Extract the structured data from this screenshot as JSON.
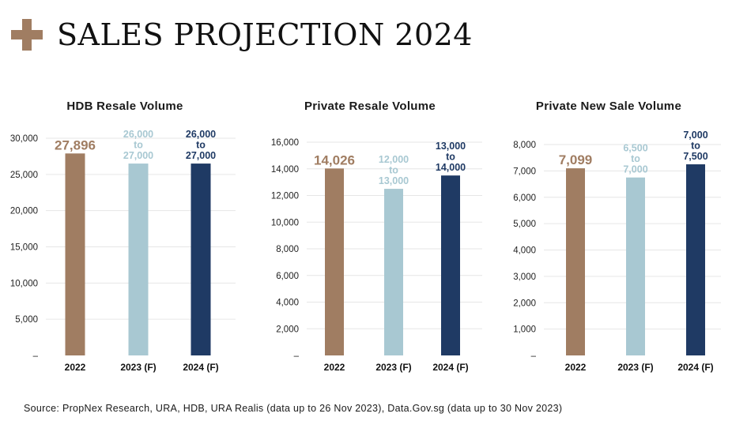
{
  "header": {
    "title": "SALES PROJECTION 2024",
    "icon": "plus-icon"
  },
  "colors": {
    "2022": "#a07d62",
    "2023 (F)": "#a8c8d2",
    "2024 (F)": "#1f3a64",
    "grid": "#e6e6e6"
  },
  "chart_data": [
    {
      "type": "bar",
      "title": "HDB Resale Volume",
      "categories": [
        "2022",
        "2023 (F)",
        "2024 (F)"
      ],
      "values": [
        27896,
        26500,
        26500
      ],
      "ranges": [
        null,
        [
          26000,
          27000
        ],
        [
          26000,
          27000
        ]
      ],
      "data_labels": [
        [
          "27,896"
        ],
        [
          "26,000",
          "to",
          "27,000"
        ],
        [
          "26,000",
          "to",
          "27,000"
        ]
      ],
      "ylim": [
        0,
        30000
      ],
      "yticks": [
        "–",
        "5,000",
        "10,000",
        "15,000",
        "20,000",
        "25,000",
        "30,000"
      ],
      "grid": true
    },
    {
      "type": "bar",
      "title": "Private Resale Volume",
      "categories": [
        "2022",
        "2023 (F)",
        "2024 (F)"
      ],
      "values": [
        14026,
        12500,
        13500
      ],
      "ranges": [
        null,
        [
          12000,
          13000
        ],
        [
          13000,
          14000
        ]
      ],
      "data_labels": [
        [
          "14,026"
        ],
        [
          "12,000",
          "to",
          "13,000"
        ],
        [
          "13,000",
          "to",
          "14,000"
        ]
      ],
      "ylim": [
        0,
        16000
      ],
      "yticks": [
        "–",
        "2,000",
        "4,000",
        "6,000",
        "8,000",
        "10,000",
        "12,000",
        "14,000",
        "16,000"
      ],
      "grid": true
    },
    {
      "type": "bar",
      "title": "Private New Sale Volume",
      "categories": [
        "2022",
        "2023 (F)",
        "2024 (F)"
      ],
      "values": [
        7099,
        6750,
        7250
      ],
      "ranges": [
        null,
        [
          6500,
          7000
        ],
        [
          7000,
          7500
        ]
      ],
      "data_labels": [
        [
          "7,099"
        ],
        [
          "6,500",
          "to",
          "7,000"
        ],
        [
          "7,000",
          "to",
          "7,500"
        ]
      ],
      "ylim": [
        0,
        8000
      ],
      "yticks": [
        "–",
        "1,000",
        "2,000",
        "3,000",
        "4,000",
        "5,000",
        "6,000",
        "7,000",
        "8,000"
      ],
      "grid": true
    }
  ],
  "source": "Source: PropNex Research, URA, HDB, URA Realis (data up to 26 Nov 2023), Data.Gov.sg (data up to 30 Nov 2023)"
}
